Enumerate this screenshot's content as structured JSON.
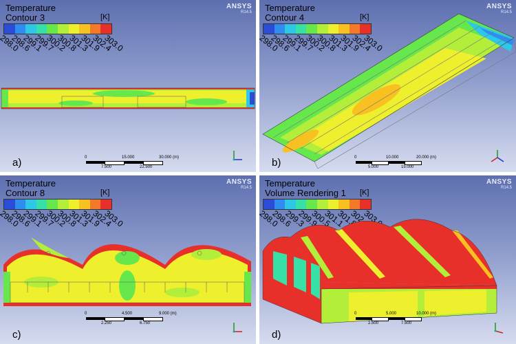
{
  "panels": [
    {
      "label": "a)",
      "title": "Temperature",
      "subtitle": "Contour 3",
      "unit": "[K]",
      "ticks": [
        "298.0",
        "298.6",
        "299.1",
        "299.7",
        "300.2",
        "300.8",
        "301.3",
        "301.9",
        "302.4",
        "303.0"
      ],
      "scale": {
        "top": [
          "0",
          "15.000",
          "30.000 (m)"
        ],
        "bottom": [
          "7.500",
          "22.500"
        ]
      }
    },
    {
      "label": "b)",
      "title": "Temperature",
      "subtitle": "Contour 4",
      "unit": "[K]",
      "ticks": [
        "298.0",
        "298.6",
        "299.1",
        "299.7",
        "300.2",
        "300.8",
        "301.3",
        "301.9",
        "302.4",
        "303.0"
      ],
      "scale": {
        "top": [
          "0",
          "10.000",
          "20.000 (m)"
        ],
        "bottom": [
          "5.000",
          "15.000"
        ]
      }
    },
    {
      "label": "c)",
      "title": "Temperature",
      "subtitle": "Contour 8",
      "unit": "[K]",
      "ticks": [
        "298.0",
        "298.6",
        "299.1",
        "299.7",
        "300.2",
        "300.8",
        "301.3",
        "301.9",
        "302.4",
        "303.0"
      ],
      "scale": {
        "top": [
          "0",
          "4.500",
          "9.000 (m)"
        ],
        "bottom": [
          "2.250",
          "6.750"
        ]
      }
    },
    {
      "label": "d)",
      "title": "Temperature",
      "subtitle": "Volume Rendering 1",
      "unit": "[K]",
      "ticks": [
        "298.0",
        "298.6",
        "299.3",
        "299.9",
        "300.5",
        "301.1",
        "301.8",
        "302.4",
        "303.0"
      ],
      "scale": {
        "top": [
          "0",
          "5.000",
          "10.000 (m)"
        ],
        "bottom": [
          "2.500",
          "7.500"
        ]
      }
    }
  ],
  "brand": {
    "name": "ANSYS",
    "version": "R14.5"
  },
  "colormap": [
    "#2a4cd8",
    "#2f8df0",
    "#2ec8e6",
    "#37e0a6",
    "#66e84c",
    "#b3ee3a",
    "#eef02e",
    "#f8c020",
    "#f4782a",
    "#e8302a"
  ]
}
